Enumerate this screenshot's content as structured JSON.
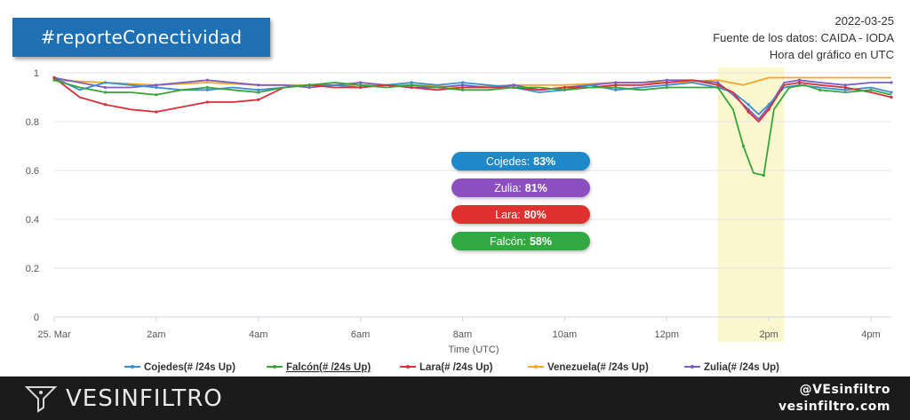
{
  "header": {
    "hashtag": "#reporteConectividad",
    "date": "2022-03-25",
    "source": "Fuente de los datos: CAIDA - IODA",
    "time_note": "Hora del gráfico en UTC"
  },
  "colors": {
    "cojedes": "#3c8ed3",
    "falcon": "#3aa33a",
    "lara": "#d6303a",
    "venezuela": "#f5a52a",
    "zulia": "#7b5fbf",
    "highlight": "#fbf7cf",
    "cojedes_pill": "#1e88c8",
    "zulia_pill": "#8c4fc0",
    "lara_pill": "#e0302f",
    "falcon_pill": "#34a840"
  },
  "badges": [
    {
      "name": "Cojedes:",
      "value": "83%"
    },
    {
      "name": "Zulia:",
      "value": "81%"
    },
    {
      "name": "Lara:",
      "value": "80%"
    },
    {
      "name": "Falcón:",
      "value": "58%"
    }
  ],
  "chart_data": {
    "type": "line",
    "xlabel": "Time (UTC)",
    "ylabel": "",
    "xlim": [
      0,
      16.4
    ],
    "ylim": [
      0,
      1
    ],
    "y_ticks": [
      "0",
      "0.2",
      "0.4",
      "0.6",
      "0.8",
      "1"
    ],
    "x_ticks": [
      {
        "x": 0,
        "label": "25. Mar"
      },
      {
        "x": 2,
        "label": "2am"
      },
      {
        "x": 4,
        "label": "4am"
      },
      {
        "x": 6,
        "label": "6am"
      },
      {
        "x": 8,
        "label": "8am"
      },
      {
        "x": 10,
        "label": "10am"
      },
      {
        "x": 12,
        "label": "12pm"
      },
      {
        "x": 14,
        "label": "2pm"
      },
      {
        "x": 16,
        "label": "4pm"
      }
    ],
    "highlight_range": [
      13,
      14.3
    ],
    "grid": "horizontal",
    "legend": "bottom",
    "series": [
      {
        "name": "Cojedes(# /24s Up)",
        "color_key": "cojedes",
        "x": [
          0,
          0.5,
          1,
          1.5,
          2,
          2.5,
          3,
          3.5,
          4,
          4.5,
          5,
          5.5,
          6,
          6.5,
          7,
          7.5,
          8,
          8.5,
          9,
          9.5,
          10,
          10.5,
          11,
          11.5,
          12,
          12.5,
          13,
          13.3,
          13.6,
          13.8,
          14,
          14.3,
          14.6,
          15,
          15.5,
          16,
          16.4
        ],
        "y": [
          0.98,
          0.93,
          0.96,
          0.95,
          0.94,
          0.93,
          0.93,
          0.94,
          0.93,
          0.94,
          0.95,
          0.95,
          0.94,
          0.95,
          0.96,
          0.95,
          0.96,
          0.95,
          0.94,
          0.92,
          0.93,
          0.95,
          0.93,
          0.94,
          0.95,
          0.96,
          0.94,
          0.92,
          0.87,
          0.83,
          0.87,
          0.94,
          0.95,
          0.94,
          0.93,
          0.94,
          0.92
        ]
      },
      {
        "name": "Falcón(# /24s Up)",
        "color_key": "falcon",
        "x": [
          0,
          0.5,
          1,
          1.5,
          2,
          2.5,
          3,
          3.5,
          4,
          4.5,
          5,
          5.5,
          6,
          6.5,
          7,
          7.5,
          8,
          8.5,
          9,
          9.5,
          10,
          10.5,
          11,
          11.5,
          12,
          12.5,
          13,
          13.3,
          13.5,
          13.7,
          13.9,
          14.1,
          14.4,
          14.7,
          15,
          15.5,
          16,
          16.4
        ],
        "y": [
          0.97,
          0.94,
          0.92,
          0.92,
          0.91,
          0.93,
          0.94,
          0.93,
          0.92,
          0.94,
          0.95,
          0.96,
          0.95,
          0.94,
          0.95,
          0.94,
          0.93,
          0.93,
          0.94,
          0.94,
          0.93,
          0.94,
          0.94,
          0.93,
          0.94,
          0.94,
          0.94,
          0.85,
          0.7,
          0.59,
          0.58,
          0.85,
          0.94,
          0.95,
          0.93,
          0.92,
          0.93,
          0.91
        ]
      },
      {
        "name": "Lara(# /24s Up)",
        "color_key": "lara",
        "x": [
          0,
          0.5,
          1,
          1.5,
          2,
          2.5,
          3,
          3.5,
          4,
          4.5,
          5,
          5.5,
          6,
          6.5,
          7,
          7.5,
          8,
          8.5,
          9,
          9.5,
          10,
          10.5,
          11,
          11.5,
          12,
          12.5,
          13,
          13.3,
          13.6,
          13.8,
          14,
          14.3,
          14.6,
          15,
          15.5,
          16,
          16.4
        ],
        "y": [
          0.98,
          0.9,
          0.87,
          0.85,
          0.84,
          0.86,
          0.88,
          0.88,
          0.89,
          0.94,
          0.95,
          0.94,
          0.94,
          0.95,
          0.94,
          0.93,
          0.94,
          0.94,
          0.94,
          0.93,
          0.94,
          0.94,
          0.95,
          0.95,
          0.96,
          0.97,
          0.95,
          0.92,
          0.84,
          0.8,
          0.85,
          0.95,
          0.96,
          0.95,
          0.94,
          0.92,
          0.9
        ]
      },
      {
        "name": "Venezuela(# /24s Up)",
        "color_key": "venezuela",
        "x": [
          0,
          1,
          2,
          3,
          4,
          5,
          6,
          7,
          8,
          9,
          10,
          11,
          12,
          13,
          13.5,
          14,
          14.5,
          15,
          16,
          16.4
        ],
        "y": [
          0.97,
          0.96,
          0.95,
          0.96,
          0.95,
          0.95,
          0.95,
          0.95,
          0.94,
          0.95,
          0.95,
          0.96,
          0.96,
          0.97,
          0.95,
          0.98,
          0.98,
          0.98,
          0.98,
          0.98
        ]
      },
      {
        "name": "Zulia(# /24s Up)",
        "color_key": "zulia",
        "x": [
          0,
          0.5,
          1,
          1.5,
          2,
          2.5,
          3,
          3.5,
          4,
          4.5,
          5,
          5.5,
          6,
          6.5,
          7,
          7.5,
          8,
          8.5,
          9,
          9.5,
          10,
          10.5,
          11,
          11.5,
          12,
          12.5,
          13,
          13.3,
          13.6,
          13.8,
          14,
          14.3,
          14.6,
          15,
          15.5,
          16,
          16.4
        ],
        "y": [
          0.98,
          0.96,
          0.94,
          0.94,
          0.95,
          0.96,
          0.97,
          0.96,
          0.95,
          0.95,
          0.94,
          0.95,
          0.96,
          0.95,
          0.94,
          0.94,
          0.95,
          0.94,
          0.95,
          0.93,
          0.94,
          0.95,
          0.96,
          0.96,
          0.97,
          0.97,
          0.96,
          0.91,
          0.85,
          0.81,
          0.86,
          0.96,
          0.97,
          0.96,
          0.95,
          0.96,
          0.96
        ]
      }
    ]
  },
  "footer": {
    "brand": "VESINFILTRO",
    "handle": "@VEsinfiltro",
    "website": "vesinfiltro.com"
  }
}
